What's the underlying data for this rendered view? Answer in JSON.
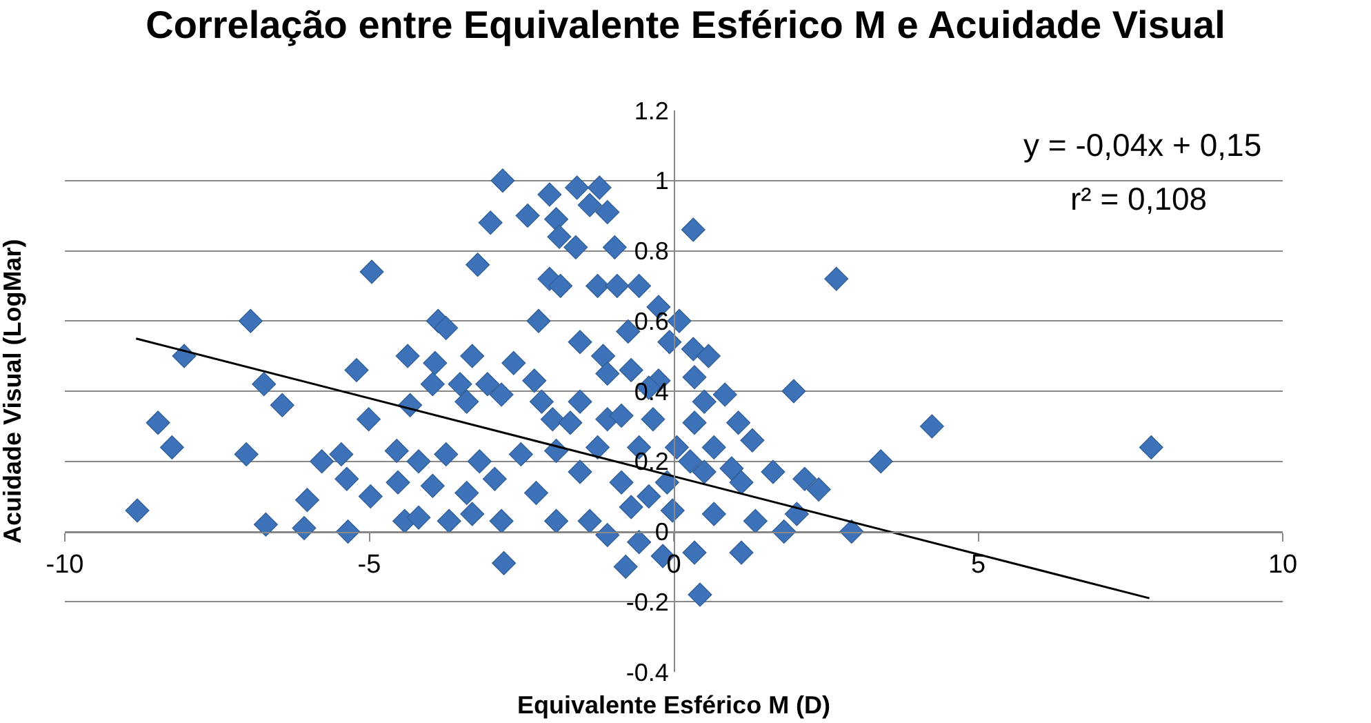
{
  "chart_data": {
    "type": "scatter",
    "title": "Correlação entre Equivalente Esférico M e Acuidade Visual",
    "xlabel": "Equivalente Esférico M (D)",
    "ylabel": "Acuidade Visual (LogMar)",
    "xlim": [
      -10,
      10
    ],
    "xticks": [
      -10,
      -5,
      0,
      5,
      10
    ],
    "ylim": [
      -0.4,
      1.2
    ],
    "yticks": [
      -0.4,
      -0.2,
      0,
      0.2,
      0.4,
      0.6,
      0.8,
      1,
      1.2
    ],
    "grid": "y",
    "marker": "diamond",
    "annotations": [
      "y = -0,04x + 0,15",
      "r² = 0,108"
    ],
    "series": [
      {
        "color": "#3d72b8",
        "x": [
          -8.81,
          -8.47,
          -8.24,
          -8.04,
          -6.95,
          -7.02,
          -6.73,
          -6.43,
          -6.7,
          -6.07,
          -6.02,
          -5.35,
          -5.78,
          -5.46,
          -5.37,
          -5.21,
          -5.01,
          -4.96,
          -4.98,
          -4.55,
          -4.53,
          -4.42,
          -4.19,
          -4.37,
          -4.33,
          -4.19,
          -3.92,
          -3.87,
          -3.74,
          -3.96,
          -3.74,
          -3.96,
          -3.69,
          -3.51,
          -3.4,
          -3.31,
          -3.19,
          -3.4,
          -3.31,
          -3.22,
          -3.01,
          -2.81,
          -3.06,
          -2.94,
          -2.83,
          -2.79,
          -2.04,
          -1.59,
          -1.22,
          -2.4,
          -1.93,
          -1.88,
          -1.38,
          -1.09,
          -1.61,
          -2.04,
          -1.86,
          -1.25,
          -0.93,
          -0.57,
          -0.25,
          0.32,
          0.09,
          -2.22,
          -1.54,
          -1.16,
          -0.07,
          0.32,
          0.57,
          -2.63,
          -2.29,
          -2.83,
          -2.17,
          -1.54,
          -0.7,
          -0.25,
          0.34,
          0.5,
          1.97,
          2.67,
          -1.99,
          -1.7,
          -1.09,
          -0.34,
          0.34,
          1.06,
          1.29,
          -2.51,
          -1.93,
          -1.25,
          -0.57,
          0.05,
          0.66,
          1.63,
          2.15,
          2.38,
          -2.26,
          -1.54,
          -0.86,
          -0.11,
          0.5,
          1.11,
          -1.93,
          -1.38,
          -0.7,
          -0.02,
          0.66,
          1.34,
          1.81,
          2.02,
          2.92,
          -0.79,
          -0.18,
          0.34,
          1.11,
          0.43,
          -0.57,
          -1.09,
          4.24,
          7.84,
          3.4,
          -0.86,
          -0.41,
          -0.75,
          -0.97,
          0.84,
          0.95,
          -0.41,
          0.27,
          -1.09
        ],
        "values": [
          0.06,
          0.31,
          0.24,
          0.5,
          0.6,
          0.22,
          0.42,
          0.36,
          0.02,
          0.01,
          0.09,
          0.0,
          0.2,
          0.22,
          0.15,
          0.46,
          0.32,
          0.74,
          0.1,
          0.23,
          0.14,
          0.03,
          0.04,
          0.5,
          0.36,
          0.2,
          0.48,
          0.6,
          0.58,
          0.42,
          0.22,
          0.13,
          0.03,
          0.42,
          0.37,
          0.5,
          0.2,
          0.11,
          0.05,
          0.76,
          0.88,
          1.0,
          0.42,
          0.15,
          0.03,
          -0.09,
          0.96,
          0.98,
          0.98,
          0.9,
          0.89,
          0.84,
          0.93,
          0.91,
          0.81,
          0.72,
          0.7,
          0.7,
          0.7,
          0.7,
          0.64,
          0.86,
          0.6,
          0.6,
          0.54,
          0.5,
          0.54,
          0.52,
          0.5,
          0.48,
          0.43,
          0.39,
          0.37,
          0.37,
          0.46,
          0.43,
          0.44,
          0.37,
          0.4,
          0.72,
          0.32,
          0.31,
          0.32,
          0.32,
          0.31,
          0.31,
          0.26,
          0.22,
          0.23,
          0.24,
          0.24,
          0.24,
          0.24,
          0.17,
          0.15,
          0.12,
          0.11,
          0.17,
          0.14,
          0.14,
          0.17,
          0.14,
          0.03,
          0.03,
          0.07,
          0.06,
          0.05,
          0.03,
          0.0,
          0.05,
          0.0,
          -0.1,
          -0.07,
          -0.06,
          -0.06,
          -0.18,
          -0.03,
          -0.01,
          0.3,
          0.24,
          0.2,
          0.33,
          0.41,
          0.57,
          0.81,
          0.39,
          0.18,
          0.1,
          0.2,
          0.45
        ]
      },
      {
        "type": "line",
        "color": "#000000",
        "marker": "none",
        "x": [
          -8.83,
          7.81
        ],
        "values": [
          0.55,
          -0.19
        ]
      }
    ]
  }
}
